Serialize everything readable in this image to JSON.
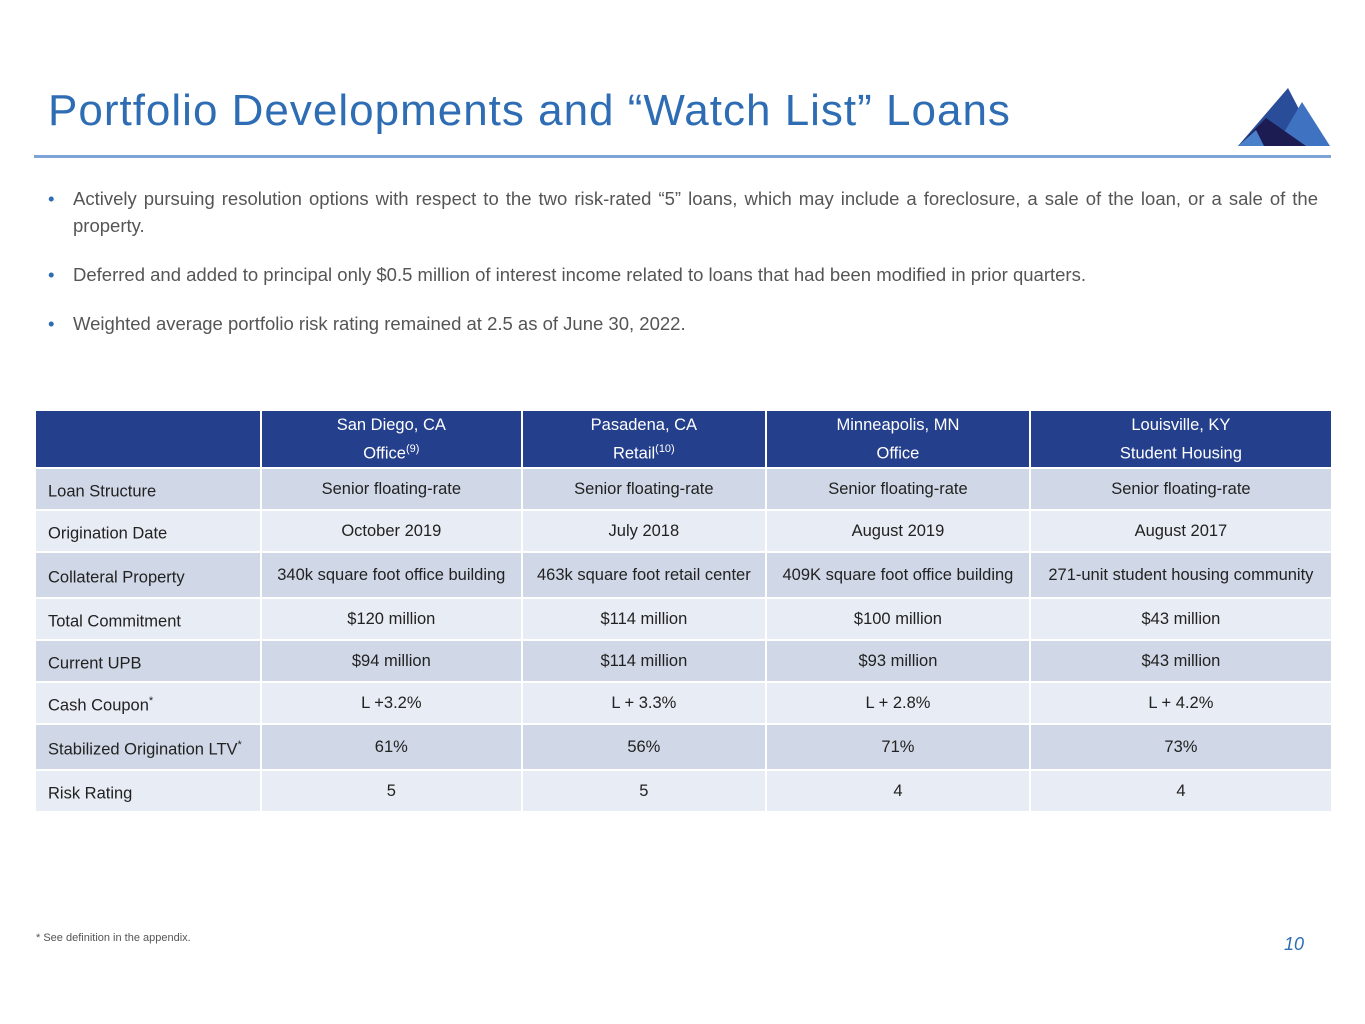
{
  "title": "Portfolio Developments and “Watch List” Loans",
  "bullets": [
    "Actively pursuing resolution options with respect to the two risk-rated “5” loans, which may include a foreclosure, a sale of the loan, or a sale of the property.",
    "Deferred and added to principal only $0.5 million of interest income related to loans that had been modified in prior quarters.",
    "Weighted average portfolio risk rating remained at 2.5 as of June 30, 2022."
  ],
  "table": {
    "columns": [
      {
        "city": "San Diego, CA",
        "type": "Office",
        "note": "(9)"
      },
      {
        "city": "Pasadena, CA",
        "type": "Retail",
        "note": "(10)"
      },
      {
        "city": "Minneapolis, MN",
        "type": "Office",
        "note": ""
      },
      {
        "city": "Louisville, KY",
        "type": "Student Housing",
        "note": ""
      }
    ],
    "rows": [
      {
        "label": "Loan Structure",
        "note": "",
        "values": [
          "Senior floating-rate",
          "Senior floating-rate",
          "Senior floating-rate",
          "Senior floating-rate"
        ]
      },
      {
        "label": "Origination Date",
        "note": "",
        "values": [
          "October 2019",
          "July 2018",
          "August 2019",
          "August 2017"
        ]
      },
      {
        "label": "Collateral Property",
        "note": "",
        "values": [
          "340k square foot office building",
          "463k square foot retail center",
          "409K square foot office building",
          "271-unit student housing community"
        ]
      },
      {
        "label": "Total Commitment",
        "note": "",
        "values": [
          "$120 million",
          "$114 million",
          "$100 million",
          "$43 million"
        ]
      },
      {
        "label": "Current UPB",
        "note": "",
        "values": [
          "$94 million",
          "$114 million",
          "$93 million",
          "$43 million"
        ]
      },
      {
        "label": "Cash Coupon",
        "note": "*",
        "values": [
          "L +3.2%",
          "L + 3.3%",
          "L + 2.8%",
          "L + 4.2%"
        ]
      },
      {
        "label": "Stabilized Origination LTV",
        "note": "*",
        "values": [
          "61%",
          "56%",
          "71%",
          "73%"
        ]
      },
      {
        "label": "Risk Rating",
        "note": "",
        "values": [
          "5",
          "5",
          "4",
          "4"
        ]
      }
    ]
  },
  "footnote": "* See definition in the appendix.",
  "page_number": "10",
  "colors": {
    "title": "#2e6db4",
    "header": "#243f8c",
    "row_odd": "#d0d7e6",
    "row_even": "#e8ecf4"
  }
}
